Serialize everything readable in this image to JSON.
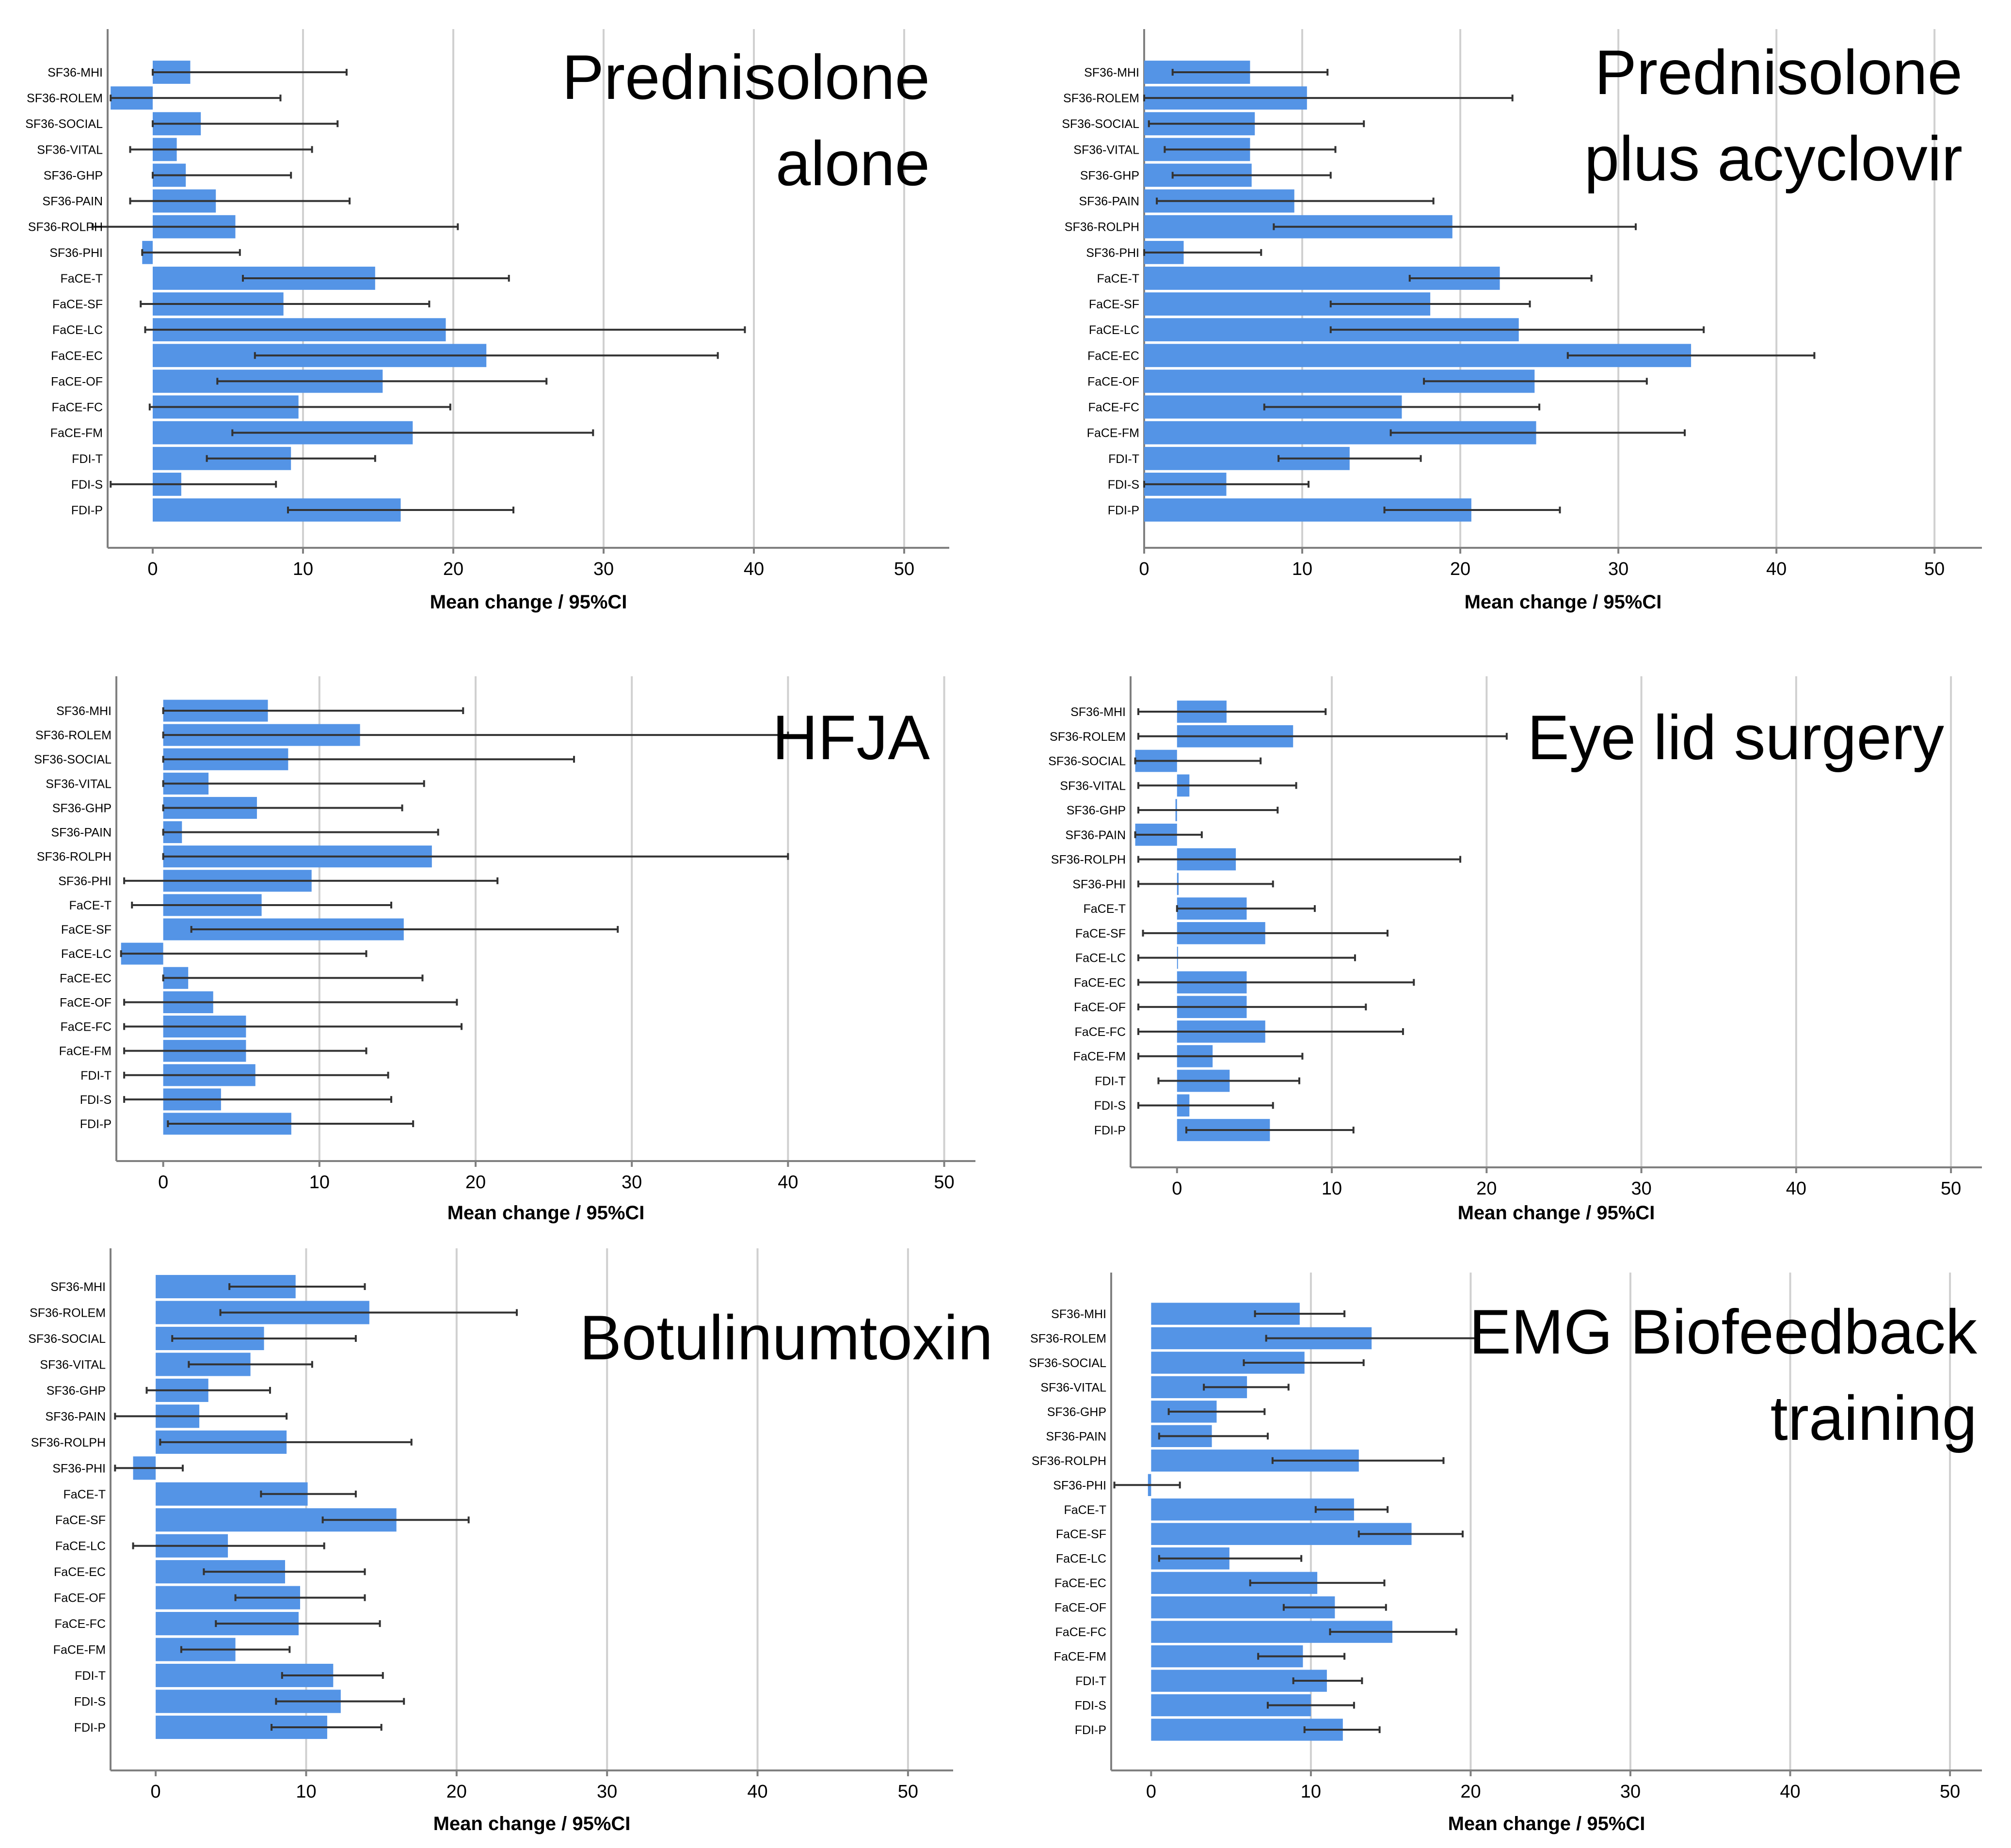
{
  "figure": {
    "background": "#ffffff",
    "bar_color": "#5494E6",
    "grid_color": "#D0D0D0",
    "axis_color": "#808080",
    "errorbar_color": "#333333"
  },
  "chart_data": [
    {
      "type": "bar",
      "orientation": "horizontal",
      "title": "Prednisolone alone",
      "title_lines": [
        "Prednisolone",
        "alone"
      ],
      "xlabel": "Mean change / 95%CI",
      "xlim": [
        -3,
        53
      ],
      "xticks": [
        0,
        10,
        20,
        30,
        40,
        50
      ],
      "categories": [
        "SF36-MHI",
        "SF36-ROLEM",
        "SF36-SOCIAL",
        "SF36-VITAL",
        "SF36-GHP",
        "SF36-PAIN",
        "SF36-ROLPH",
        "SF36-PHI",
        "FaCE-T",
        "FaCE-SF",
        "FaCE-LC",
        "FaCE-EC",
        "FaCE-OF",
        "FaCE-FC",
        "FaCE-FM",
        "FDI-T",
        "FDI-S",
        "FDI-P"
      ],
      "values": [
        2.5,
        -2.8,
        3.2,
        1.6,
        2.2,
        4.2,
        5.5,
        -0.7,
        14.8,
        8.7,
        19.5,
        22.2,
        15.3,
        9.7,
        17.3,
        9.2,
        1.9,
        16.5
      ],
      "ci_low": [
        0,
        -2.8,
        0,
        -1.5,
        0,
        -1.5,
        -4,
        -0.7,
        6,
        -0.8,
        -0.5,
        6.8,
        4.3,
        -0.2,
        5.3,
        3.6,
        -2.8,
        9
      ],
      "ci_high": [
        12.9,
        8.5,
        12.3,
        10.6,
        9.2,
        13.1,
        20.3,
        5.8,
        23.7,
        18.4,
        39.4,
        37.6,
        26.2,
        19.8,
        29.3,
        14.8,
        8.2,
        24
      ]
    },
    {
      "type": "bar",
      "orientation": "horizontal",
      "title": "Prednisolone plus acyclovir",
      "title_lines": [
        "Prednisolone",
        "plus acyclovir"
      ],
      "xlabel": "Mean change / 95%CI",
      "xlim": [
        0,
        53
      ],
      "xticks": [
        0,
        10,
        20,
        30,
        40,
        50
      ],
      "categories": [
        "SF36-MHI",
        "SF36-ROLEM",
        "SF36-SOCIAL",
        "SF36-VITAL",
        "SF36-GHP",
        "SF36-PAIN",
        "SF36-ROLPH",
        "SF36-PHI",
        "FaCE-T",
        "FaCE-SF",
        "FaCE-LC",
        "FaCE-EC",
        "FaCE-OF",
        "FaCE-FC",
        "FaCE-FM",
        "FDI-T",
        "FDI-S",
        "FDI-P"
      ],
      "values": [
        6.7,
        10.3,
        7,
        6.7,
        6.8,
        9.5,
        19.5,
        2.5,
        22.5,
        18.1,
        23.7,
        34.6,
        24.7,
        16.3,
        24.8,
        13,
        5.2,
        20.7
      ],
      "ci_low": [
        1.8,
        0,
        0.3,
        1.3,
        1.8,
        0.8,
        8.2,
        0,
        16.8,
        11.8,
        11.8,
        26.8,
        17.7,
        7.6,
        15.6,
        8.5,
        0,
        15.2
      ],
      "ci_high": [
        11.6,
        23.3,
        13.9,
        12.1,
        11.8,
        18.3,
        31.1,
        7.4,
        28.3,
        24.4,
        35.4,
        42.4,
        31.8,
        25,
        34.2,
        17.5,
        10.4,
        26.3
      ]
    },
    {
      "type": "bar",
      "orientation": "horizontal",
      "title": "HFJA",
      "title_lines": [
        "HFJA"
      ],
      "xlabel": "Mean change / 95%CI",
      "xlim": [
        -3,
        52
      ],
      "xticks": [
        0,
        10,
        20,
        30,
        40,
        50
      ],
      "categories": [
        "SF36-MHI",
        "SF36-ROLEM",
        "SF36-SOCIAL",
        "SF36-VITAL",
        "SF36-GHP",
        "SF36-PAIN",
        "SF36-ROLPH",
        "SF36-PHI",
        "FaCE-T",
        "FaCE-SF",
        "FaCE-LC",
        "FaCE-EC",
        "FaCE-OF",
        "FaCE-FC",
        "FaCE-FM",
        "FDI-T",
        "FDI-S",
        "FDI-P"
      ],
      "values": [
        6.7,
        12.6,
        8,
        2.9,
        6,
        1.2,
        17.2,
        9.5,
        6.3,
        15.4,
        -2.7,
        1.6,
        3.2,
        5.3,
        5.3,
        5.9,
        3.7,
        8.2
      ],
      "ci_low": [
        0,
        0,
        0,
        0,
        0,
        0,
        0,
        -2.5,
        -2,
        1.8,
        -2.7,
        0,
        -2.5,
        -2.5,
        -2.5,
        -2.5,
        -2.5,
        0.3
      ],
      "ci_high": [
        19.2,
        40,
        26.3,
        16.7,
        15.3,
        17.6,
        40,
        21.4,
        14.6,
        29.1,
        13,
        16.6,
        18.8,
        19.1,
        13,
        14.4,
        14.6,
        16
      ]
    },
    {
      "type": "bar",
      "orientation": "horizontal",
      "title": "Eye lid surgery",
      "title_lines": [
        "Eye lid surgery"
      ],
      "xlabel": "Mean change / 95%CI",
      "xlim": [
        -3,
        52
      ],
      "xticks": [
        0,
        10,
        20,
        30,
        40,
        50
      ],
      "categories": [
        "SF36-MHI",
        "SF36-ROLEM",
        "SF36-SOCIAL",
        "SF36-VITAL",
        "SF36-GHP",
        "SF36-PAIN",
        "SF36-ROLPH",
        "SF36-PHI",
        "FaCE-T",
        "FaCE-SF",
        "FaCE-LC",
        "FaCE-EC",
        "FaCE-OF",
        "FaCE-FC",
        "FaCE-FM",
        "FDI-T",
        "FDI-S",
        "FDI-P"
      ],
      "values": [
        3.2,
        7.5,
        -2.7,
        0.8,
        -0.1,
        -2.7,
        3.8,
        0.1,
        4.5,
        5.7,
        0,
        4.5,
        4.5,
        5.7,
        2.3,
        3.4,
        0.8,
        6
      ],
      "ci_low": [
        -2.5,
        -2.5,
        -2.7,
        -2.5,
        -2.5,
        -2.7,
        -2.5,
        -2.5,
        0,
        -2.2,
        -2.5,
        -2.5,
        -2.5,
        -2.5,
        -2.5,
        -1.2,
        -2.5,
        0.6
      ],
      "ci_high": [
        9.6,
        21.3,
        5.4,
        7.7,
        6.5,
        1.6,
        18.3,
        6.2,
        8.9,
        13.6,
        11.5,
        15.3,
        12.2,
        14.6,
        8.1,
        7.9,
        6.2,
        11.4
      ]
    },
    {
      "type": "bar",
      "orientation": "horizontal",
      "title": "Botulinumtoxin",
      "title_lines": [
        "Botulinumtoxin"
      ],
      "xlabel": "Mean change / 95%CI",
      "xlim": [
        -3,
        53
      ],
      "xticks": [
        0,
        10,
        20,
        30,
        40,
        50
      ],
      "categories": [
        "SF36-MHI",
        "SF36-ROLEM",
        "SF36-SOCIAL",
        "SF36-VITAL",
        "SF36-GHP",
        "SF36-PAIN",
        "SF36-ROLPH",
        "SF36-PHI",
        "FaCE-T",
        "FaCE-SF",
        "FaCE-LC",
        "FaCE-EC",
        "FaCE-OF",
        "FaCE-FC",
        "FaCE-FM",
        "FDI-T",
        "FDI-S",
        "FDI-P"
      ],
      "values": [
        9.3,
        14.2,
        7.2,
        6.3,
        3.5,
        2.9,
        8.7,
        -1.5,
        10.1,
        16,
        4.8,
        8.6,
        9.6,
        9.5,
        5.3,
        11.8,
        12.3,
        11.4
      ],
      "ci_low": [
        4.9,
        4.3,
        1.1,
        2.2,
        -0.6,
        -2.7,
        0.3,
        -2.7,
        7,
        11.1,
        -1.5,
        3.2,
        5.3,
        4,
        1.7,
        8.4,
        8,
        7.7
      ],
      "ci_high": [
        13.9,
        24,
        13.3,
        10.4,
        7.6,
        8.7,
        17,
        1.8,
        13.3,
        20.8,
        11.2,
        13.9,
        13.9,
        14.9,
        8.9,
        15.1,
        16.5,
        15
      ]
    },
    {
      "type": "bar",
      "orientation": "horizontal",
      "title": "EMG Biofeedback training",
      "title_lines": [
        "EMG Biofeedback",
        "training"
      ],
      "xlabel": "Mean change / 95%CI",
      "xlim": [
        -2.5,
        52
      ],
      "xticks": [
        0,
        10,
        20,
        30,
        40,
        50
      ],
      "categories": [
        "SF36-MHI",
        "SF36-ROLEM",
        "SF36-SOCIAL",
        "SF36-VITAL",
        "SF36-GHP",
        "SF36-PAIN",
        "SF36-ROLPH",
        "SF36-PHI",
        "FaCE-T",
        "FaCE-SF",
        "FaCE-LC",
        "FaCE-EC",
        "FaCE-OF",
        "FaCE-FC",
        "FaCE-FM",
        "FDI-T",
        "FDI-S",
        "FDI-P"
      ],
      "values": [
        9.3,
        13.8,
        9.6,
        6,
        4.1,
        3.8,
        13,
        -0.2,
        12.7,
        16.3,
        4.9,
        10.4,
        11.5,
        15.1,
        9.5,
        11,
        10,
        12
      ],
      "ci_low": [
        6.5,
        7.2,
        5.8,
        3.3,
        1.1,
        0.5,
        7.6,
        -2.3,
        10.3,
        13,
        0.5,
        6.2,
        8.3,
        11.2,
        6.7,
        8.9,
        7.3,
        9.6
      ],
      "ci_high": [
        12.1,
        20.3,
        13.3,
        8.6,
        7.1,
        7.3,
        18.3,
        1.8,
        14.8,
        19.5,
        9.4,
        14.6,
        14.7,
        19.1,
        12.1,
        13.2,
        12.7,
        14.3
      ]
    }
  ]
}
